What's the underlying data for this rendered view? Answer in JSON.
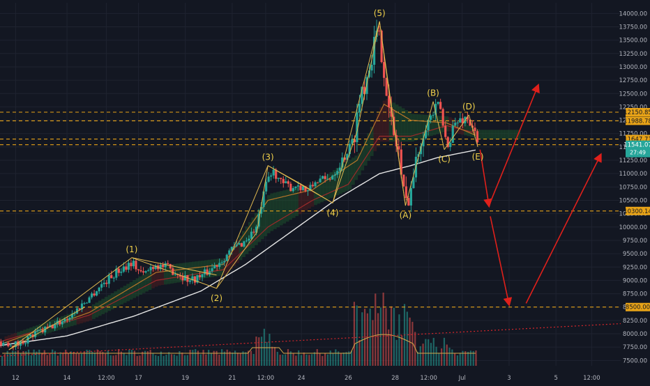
{
  "theme": {
    "background": "#131722",
    "grid": "#1f2330",
    "axis_text": "#b2b5be",
    "wave_line": "#e0b84f",
    "wave_label": "#f2d24b",
    "projection": "#e0201b",
    "level_line": "#e8a317",
    "ma_white": "#e6e6e6",
    "ma_red": "#9c2a2a",
    "ma_orange": "#b8762a",
    "candle_up": "#26a69a",
    "candle_down": "#ef5350",
    "cloud_green": "#1e5a2f",
    "cloud_red": "#5a2020",
    "trendline": "#d8262b",
    "level_label_bg": "#e8a317",
    "level_label_text": "#131722",
    "price_label_bg": "#26a69a",
    "price_label_text": "#ffffff"
  },
  "chart_data": {
    "type": "candlestick",
    "x_axis": {
      "ticks": [
        {
          "label": "12",
          "t": 0.35
        },
        {
          "label": "14",
          "t": 1.5
        },
        {
          "label": "12:00",
          "t": 2.38
        },
        {
          "label": "17",
          "t": 3.1
        },
        {
          "label": "19",
          "t": 4.15
        },
        {
          "label": "21",
          "t": 5.2
        },
        {
          "label": "12:00",
          "t": 5.95
        },
        {
          "label": "24",
          "t": 6.75
        },
        {
          "label": "26",
          "t": 7.8
        },
        {
          "label": "28",
          "t": 8.85
        },
        {
          "label": "12:00",
          "t": 9.6
        },
        {
          "label": "Jul",
          "t": 10.35
        },
        {
          "label": "3",
          "t": 11.4
        },
        {
          "label": "5",
          "t": 12.45
        },
        {
          "label": "12:00",
          "t": 13.25
        }
      ],
      "range": [
        0,
        13.9
      ]
    },
    "y_axis": {
      "ticks": [
        7500,
        7750,
        8000,
        8250,
        8500,
        8750,
        9000,
        9250,
        9500,
        9750,
        10000,
        10250,
        10500,
        10750,
        11000,
        11250,
        11500,
        11750,
        12000,
        12250,
        12500,
        12750,
        13000,
        13250,
        13500,
        13750,
        14000
      ],
      "tick_labels": [
        "7500.00",
        "7750.00",
        "8000.00",
        "8250.00",
        "8500.00",
        "8750.00",
        "9000.00",
        "9250.00",
        "9500.00",
        "9750.00",
        "10000.00",
        "10250.00",
        "10500.00",
        "10750.00",
        "11000.00",
        "11250.00",
        "11500.00",
        "11750.00",
        "12000.00",
        "12250.00",
        "12500.00",
        "12750.00",
        "13000.00",
        "13250.00",
        "13500.00",
        "13750.00",
        "14000.00"
      ],
      "range": [
        7400,
        14200
      ]
    },
    "price_anchors": [
      [
        0,
        7850
      ],
      [
        0.4,
        7800
      ],
      [
        0.8,
        8000
      ],
      [
        1.2,
        8150
      ],
      [
        1.6,
        8350
      ],
      [
        1.9,
        8600
      ],
      [
        2.25,
        8900
      ],
      [
        2.6,
        9150
      ],
      [
        2.95,
        9350
      ],
      [
        3.2,
        9100
      ],
      [
        3.45,
        9300
      ],
      [
        3.7,
        9250
      ],
      [
        3.95,
        9150
      ],
      [
        4.25,
        9000
      ],
      [
        4.55,
        9100
      ],
      [
        4.85,
        9300
      ],
      [
        5.15,
        9550
      ],
      [
        5.5,
        9750
      ],
      [
        5.75,
        10000
      ],
      [
        5.85,
        10400
      ],
      [
        6.0,
        10900
      ],
      [
        6.15,
        11050
      ],
      [
        6.3,
        10800
      ],
      [
        6.5,
        10750
      ],
      [
        6.7,
        10800
      ],
      [
        6.9,
        10650
      ],
      [
        7.1,
        10900
      ],
      [
        7.3,
        10850
      ],
      [
        7.5,
        11050
      ],
      [
        7.7,
        11300
      ],
      [
        7.9,
        11600
      ],
      [
        8.0,
        12100
      ],
      [
        8.1,
        12600
      ],
      [
        8.2,
        12800
      ],
      [
        8.3,
        13200
      ],
      [
        8.45,
        13600
      ],
      [
        8.55,
        13300
      ],
      [
        8.62,
        12900
      ],
      [
        8.7,
        12200
      ],
      [
        8.82,
        11700
      ],
      [
        8.95,
        11400
      ],
      [
        9.0,
        10800
      ],
      [
        9.08,
        10450
      ],
      [
        9.18,
        10650
      ],
      [
        9.32,
        11200
      ],
      [
        9.45,
        11800
      ],
      [
        9.6,
        12000
      ],
      [
        9.75,
        12200
      ],
      [
        9.85,
        12300
      ],
      [
        9.95,
        11700
      ],
      [
        10.05,
        11550
      ],
      [
        10.15,
        11900
      ],
      [
        10.3,
        12000
      ],
      [
        10.45,
        12050
      ],
      [
        10.6,
        11850
      ],
      [
        10.7,
        11500
      ]
    ],
    "volume_bars": 180,
    "levels": [
      {
        "value": 12150.85,
        "label": "12150.85"
      },
      {
        "value": 11988.78,
        "label": "11988.78"
      },
      {
        "value": 11647.71,
        "label": "11647.71"
      },
      {
        "value": 11541.07,
        "label": "11541.07"
      },
      {
        "value": 10300.14,
        "label": "10300.14"
      },
      {
        "value": 8500.0,
        "label": "8500.00"
      }
    ],
    "last_price": {
      "label": "11541.07",
      "countdown": "27:49"
    },
    "waves": [
      {
        "label": "(1)",
        "t": 2.95,
        "p": 9425
      },
      {
        "label": "(2)",
        "t": 4.85,
        "p": 8850
      },
      {
        "label": "(3)",
        "t": 6.0,
        "p": 11150
      },
      {
        "label": "(4)",
        "t": 7.45,
        "p": 10450
      },
      {
        "label": "(5)",
        "t": 8.5,
        "p": 13850
      },
      {
        "label": "(A)",
        "t": 9.08,
        "p": 10400
      },
      {
        "label": "(B)",
        "t": 9.7,
        "p": 12350
      },
      {
        "label": "(C)",
        "t": 9.95,
        "p": 11450
      },
      {
        "label": "(D)",
        "t": 10.5,
        "p": 12100
      },
      {
        "label": "(E)",
        "t": 10.7,
        "p": 11500
      }
    ],
    "wave_channels": [
      [
        [
          0.2,
          7700
        ],
        [
          2.95,
          9425
        ],
        [
          4.85,
          8850
        ],
        [
          6.0,
          11150
        ],
        [
          7.45,
          10450
        ],
        [
          8.5,
          13850
        ],
        [
          9.08,
          10400
        ]
      ],
      [
        [
          0.2,
          7700
        ],
        [
          1.9,
          8500
        ]
      ],
      [
        [
          2.95,
          9425
        ],
        [
          4.85,
          9100
        ]
      ],
      [
        [
          4.85,
          8850
        ],
        [
          5.75,
          9900
        ],
        [
          6.0,
          11150
        ]
      ],
      [
        [
          6.0,
          11150
        ],
        [
          6.75,
          10800
        ],
        [
          7.45,
          10450
        ]
      ],
      [
        [
          7.45,
          10450
        ],
        [
          8.0,
          11800
        ],
        [
          8.5,
          13850
        ]
      ],
      [
        [
          8.5,
          13850
        ],
        [
          8.7,
          12600
        ],
        [
          9.08,
          10400
        ]
      ],
      [
        [
          9.08,
          10400
        ],
        [
          9.7,
          12350
        ]
      ],
      [
        [
          9.7,
          12350
        ],
        [
          9.95,
          11450
        ]
      ],
      [
        [
          9.95,
          11450
        ],
        [
          10.5,
          12100
        ]
      ],
      [
        [
          10.5,
          12100
        ],
        [
          10.7,
          11500
        ]
      ]
    ],
    "projections": [
      [
        [
          10.75,
          11450
        ],
        [
          10.95,
          10400
        ]
      ],
      [
        [
          10.95,
          10400
        ],
        [
          12.05,
          12650
        ]
      ],
      [
        [
          10.98,
          10200
        ],
        [
          11.4,
          8550
        ]
      ],
      [
        [
          11.78,
          8570
        ],
        [
          13.45,
          11350
        ]
      ]
    ],
    "trendline": [
      [
        0,
        7580
      ],
      [
        13.9,
        8190
      ]
    ],
    "ma_white": [
      [
        0,
        7780
      ],
      [
        1.5,
        7960
      ],
      [
        3,
        8330
      ],
      [
        4.5,
        8800
      ],
      [
        5.5,
        9300
      ],
      [
        6.5,
        9900
      ],
      [
        7.5,
        10500
      ],
      [
        8.5,
        11000
      ],
      [
        9.2,
        11150
      ],
      [
        9.8,
        11300
      ],
      [
        10.7,
        11450
      ]
    ],
    "ma_red": [
      [
        0,
        7850
      ],
      [
        2,
        8350
      ],
      [
        3.5,
        9000
      ],
      [
        5,
        9200
      ],
      [
        6,
        10000
      ],
      [
        7,
        10500
      ],
      [
        7.8,
        10800
      ],
      [
        8.5,
        11700
      ],
      [
        9.2,
        11700
      ],
      [
        10.0,
        11900
      ],
      [
        10.7,
        11750
      ]
    ],
    "ma_orange": [
      [
        0,
        7800
      ],
      [
        2,
        8400
      ],
      [
        3.5,
        9150
      ],
      [
        5,
        9300
      ],
      [
        6,
        10500
      ],
      [
        7,
        10700
      ],
      [
        8,
        11250
      ],
      [
        8.6,
        12300
      ],
      [
        9.2,
        12000
      ],
      [
        10,
        11950
      ],
      [
        10.7,
        11700
      ]
    ]
  }
}
